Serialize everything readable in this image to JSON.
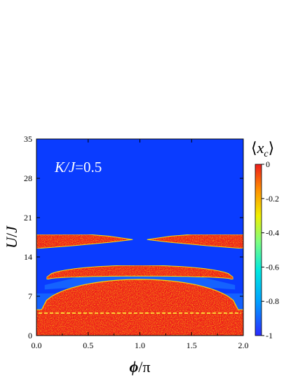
{
  "chart_data": {
    "type": "heatmap",
    "title": "",
    "xlabel": "ϕ/π",
    "ylabel": "U/J",
    "xlim": [
      0.0,
      2.0
    ],
    "ylim": [
      0,
      35
    ],
    "x_ticks": [
      "0.0",
      "0.5",
      "1.0",
      "1.5",
      "2.0"
    ],
    "y_ticks": [
      "0",
      "7",
      "14",
      "21",
      "28",
      "35"
    ],
    "annotation": "K/J=0.5",
    "colorbar": {
      "label": "⟨x_c⟩",
      "range": [
        -1,
        0
      ],
      "ticks": [
        "0",
        "-0.2",
        "-0.4",
        "-0.6",
        "-0.8",
        "-1"
      ],
      "colormap": [
        "#2a2aff",
        "#00a0ff",
        "#00e8e0",
        "#7fff7f",
        "#f0f000",
        "#ff9000",
        "#ee1c1c"
      ]
    },
    "background_value": -1,
    "reference_line": {
      "y": 4,
      "color": "#ffff40",
      "style": "dashed"
    },
    "regions": [
      {
        "name": "upper-left lobe",
        "value": 0,
        "description": "red region U/J ≈ 15.5–18, ϕ/π 0.0–0.93, tapering to right"
      },
      {
        "name": "upper-right lobe",
        "value": 0,
        "description": "red region U/J ≈ 15.5–18, ϕ/π 1.07–2.0, tapering to left"
      },
      {
        "name": "middle band",
        "value": 0,
        "description": "red arc U/J ≈ 10–12.5 for ϕ/π 0.1–1.9"
      },
      {
        "name": "lower dome",
        "value": 0,
        "description": "red dome from U/J 0 up to ≈ 10 at ϕ/π = 1.0"
      }
    ]
  }
}
